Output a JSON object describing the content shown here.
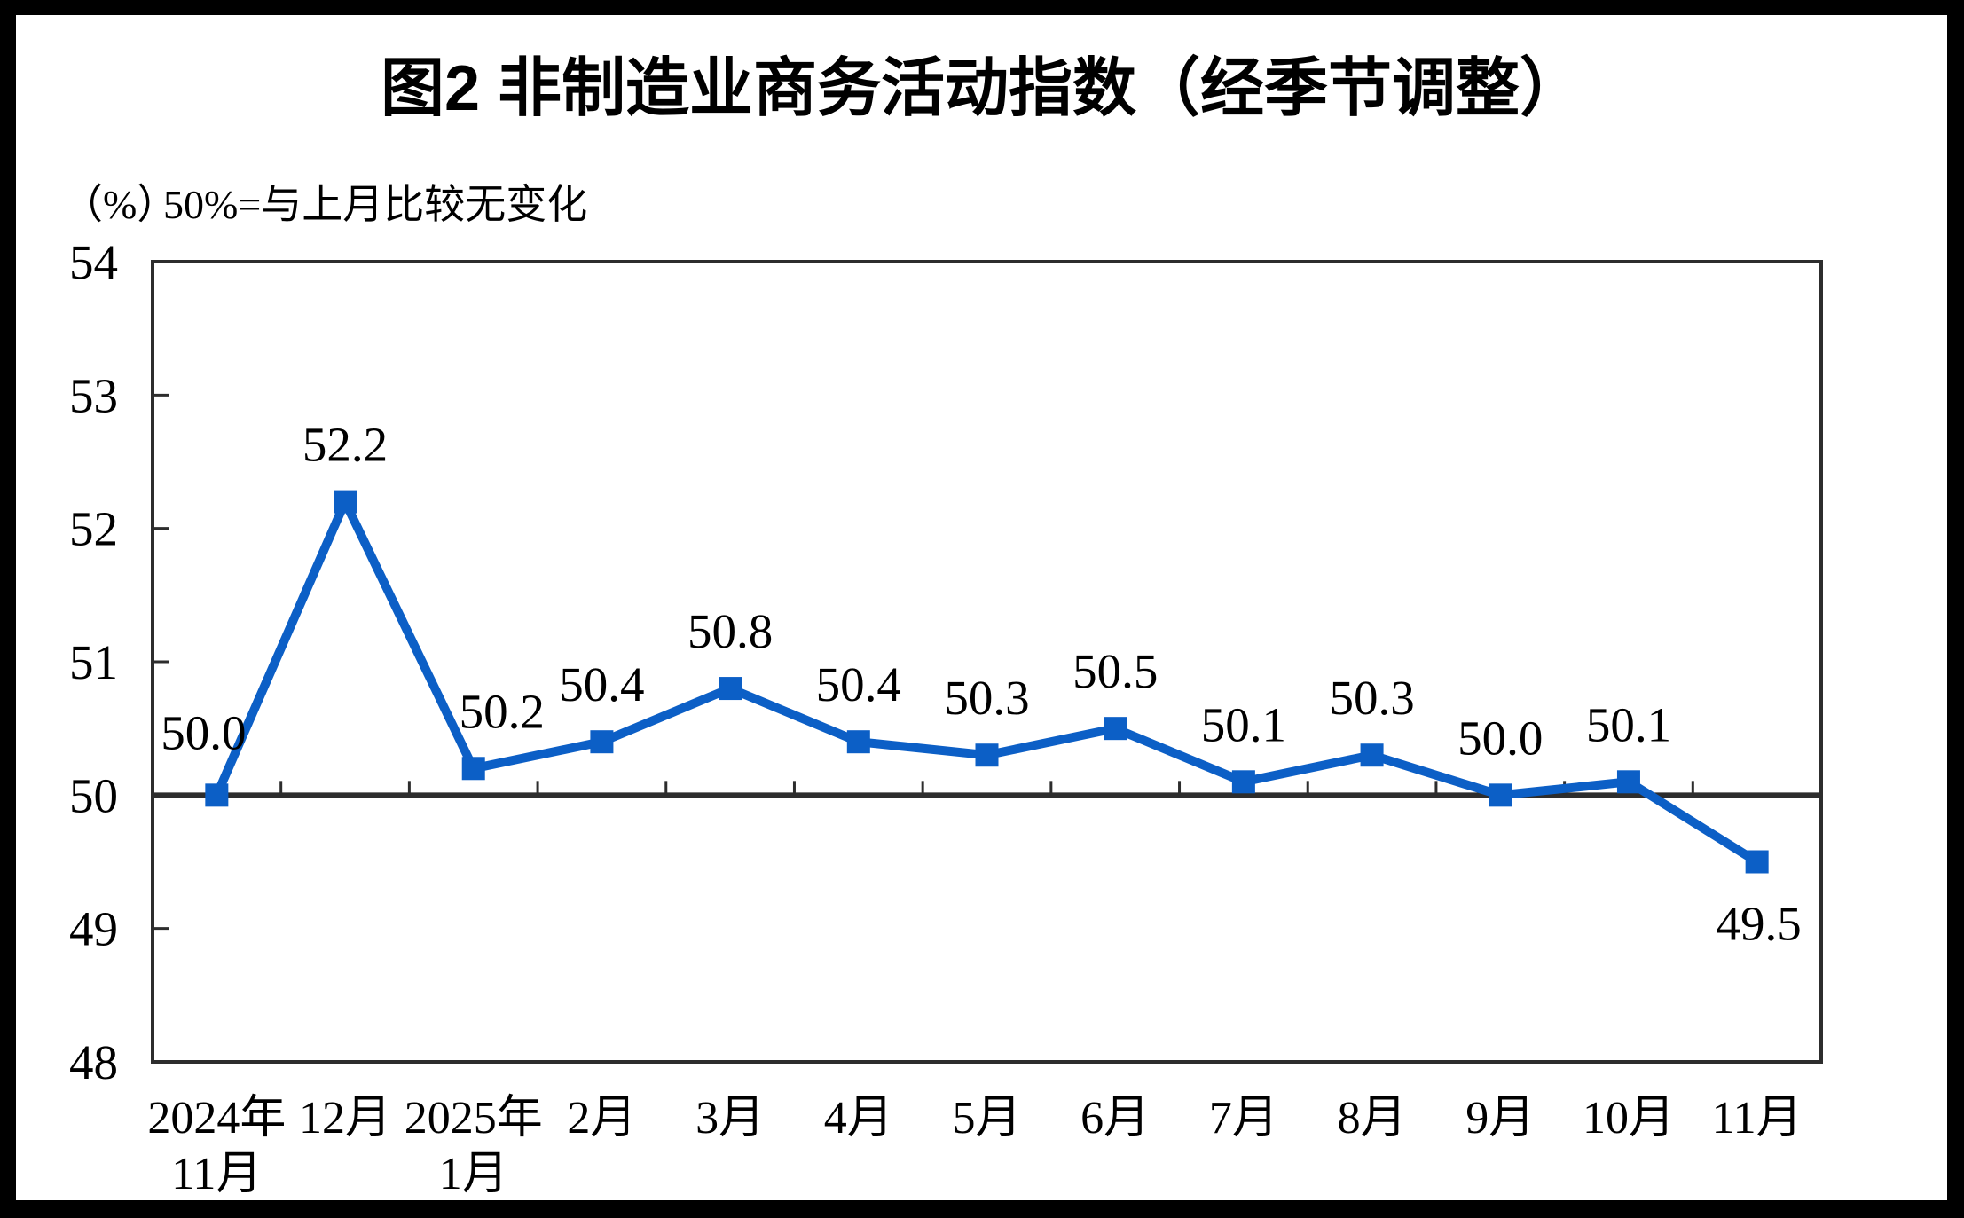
{
  "page": {
    "title": "图2 非制造业商务活动指数（经季节调整）",
    "unit_label": "（%）",
    "baseline_note": "50%=与上月比较无变化"
  },
  "colors": {
    "line": "#0C5FC6",
    "marker": "#0C5FC6",
    "axis": "#2D2D2D",
    "text": "#000000",
    "page_background": "#FFFFFF",
    "page_border": "#000000"
  },
  "chart_data": {
    "type": "line",
    "title": "图2 非制造业商务活动指数（经季节调整）",
    "unit": "%",
    "note": "50%=与上月比较无变化",
    "categories": [
      "2024年11月",
      "12月",
      "2025年1月",
      "2月",
      "3月",
      "4月",
      "5月",
      "6月",
      "7月",
      "8月",
      "9月",
      "10月",
      "11月"
    ],
    "category_label_lines": [
      [
        "2024年",
        "11月"
      ],
      [
        "12月"
      ],
      [
        "2025年",
        "1月"
      ],
      [
        "2月"
      ],
      [
        "3月"
      ],
      [
        "4月"
      ],
      [
        "5月"
      ],
      [
        "6月"
      ],
      [
        "7月"
      ],
      [
        "8月"
      ],
      [
        "9月"
      ],
      [
        "10月"
      ],
      [
        "11月"
      ]
    ],
    "series": [
      {
        "name": "非制造业商务活动指数",
        "values": [
          50.0,
          52.2,
          50.2,
          50.4,
          50.8,
          50.4,
          50.3,
          50.5,
          50.1,
          50.3,
          50.0,
          50.1,
          49.5
        ]
      }
    ],
    "data_labels": [
      "50.0",
      "52.2",
      "50.2",
      "50.4",
      "50.8",
      "50.4",
      "50.3",
      "50.5",
      "50.1",
      "50.3",
      "50.0",
      "50.1",
      "49.5"
    ],
    "ylim": [
      48,
      54
    ],
    "ytick_step": 1,
    "yticks": [
      48,
      49,
      50,
      51,
      52,
      53,
      54
    ],
    "baseline_value": 50,
    "grid": false,
    "legend": "none",
    "marker": "square",
    "layout_hint": "x labels at bottom, axis crosses at 50, inside tick marks"
  }
}
